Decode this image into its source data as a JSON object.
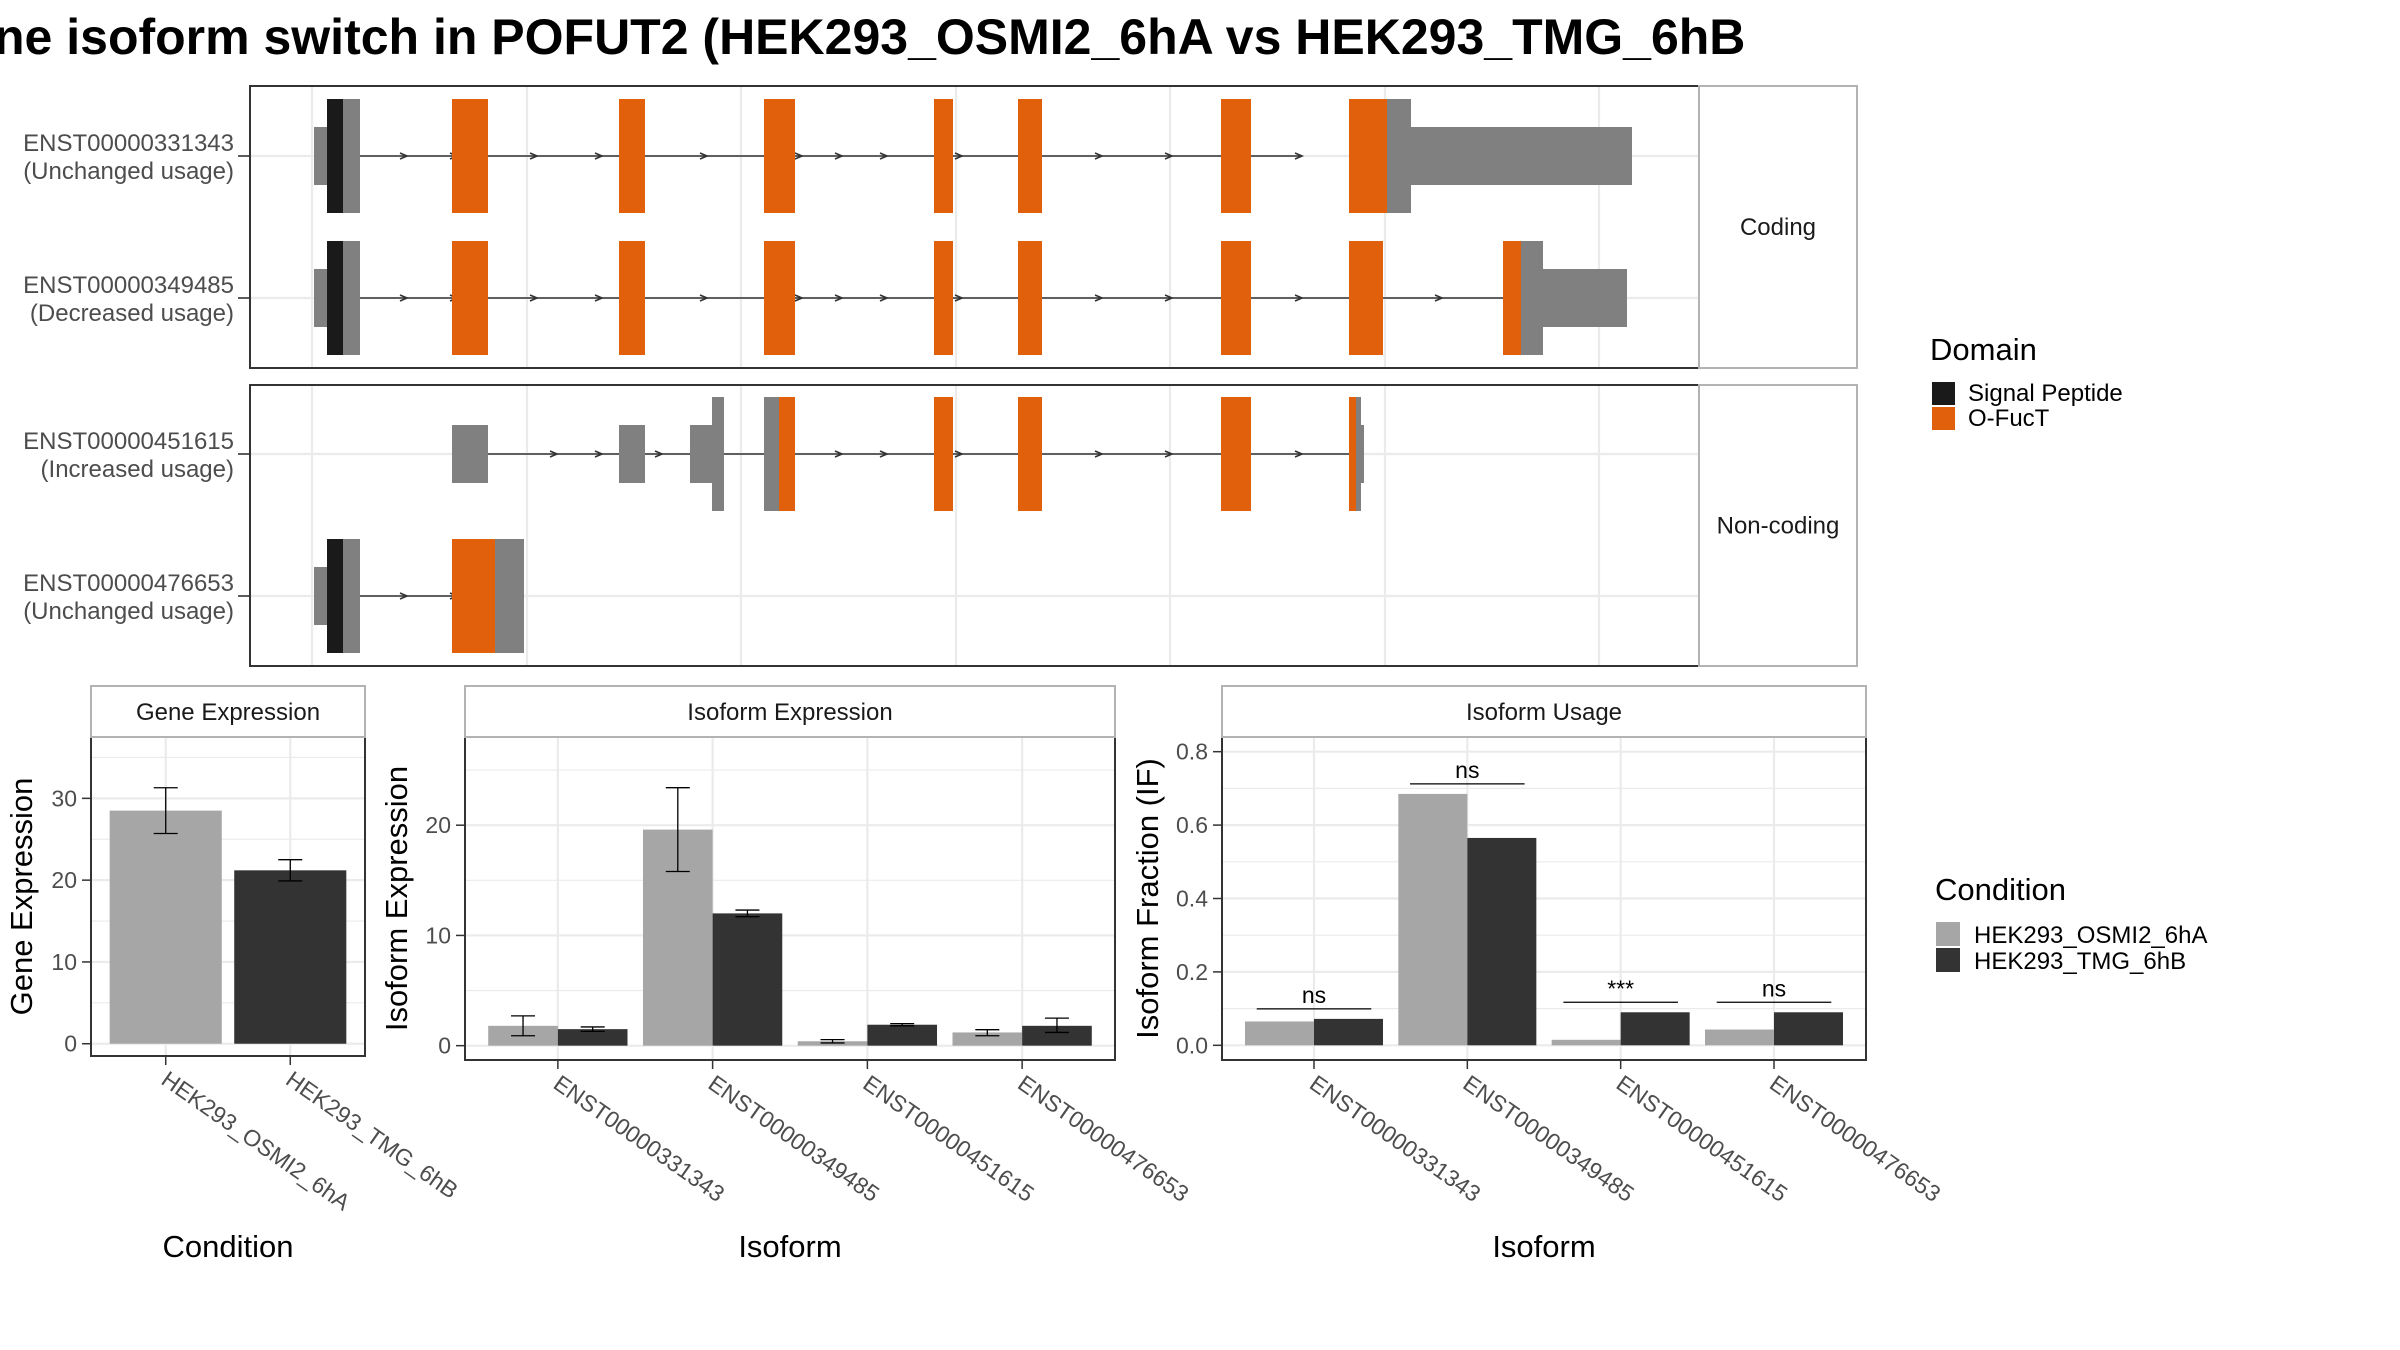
{
  "title": "ne isoform switch in POFUT2 (HEK293_OSMI2_6hA vs HEK293_TMG_6hB",
  "colors": {
    "signal_peptide": "#1a1a1a",
    "o_fuct": "#e0600b",
    "utr": "#808080",
    "cond_a": "#a6a6a6",
    "cond_b": "#333333",
    "panel_border": "#333333",
    "strip_border": "#b3b3b3",
    "grid": "#ebebeb"
  },
  "structure": {
    "groups": [
      {
        "label": "Coding",
        "isoforms": [
          {
            "id": "ENST00000331343",
            "usage": "(Unchanged usage)"
          },
          {
            "id": "ENST00000349485",
            "usage": "(Decreased usage)"
          }
        ]
      },
      {
        "label": "Non-coding",
        "isoforms": [
          {
            "id": "ENST00000451615",
            "usage": "(Increased usage)"
          },
          {
            "id": "ENST00000476653",
            "usage": "(Unchanged usage)"
          }
        ]
      }
    ],
    "legend": {
      "title": "Domain",
      "items": [
        {
          "label": "Signal Peptide",
          "color_key": "signal_peptide"
        },
        {
          "label": "O-FucT",
          "color_key": "o_fuct"
        }
      ]
    }
  },
  "chart_data": [
    {
      "type": "bar",
      "title": "Gene Expression",
      "xlabel": "Condition",
      "ylabel": "Gene Expression",
      "categories": [
        "HEK293_OSMI2_6hA",
        "HEK293_TMG_6hB"
      ],
      "values": [
        28.5,
        21.2
      ],
      "errors": [
        [
          25.7,
          31.3
        ],
        [
          19.9,
          22.5
        ]
      ],
      "ylim": [
        -1.5,
        37.5
      ],
      "yticks": [
        0,
        10,
        20,
        30
      ]
    },
    {
      "type": "bar",
      "title": "Isoform Expression",
      "xlabel": "Isoform",
      "ylabel": "Isoform Expression",
      "categories": [
        "ENST00000331343",
        "ENST00000349485",
        "ENST00000451615",
        "ENST00000476653"
      ],
      "series": [
        {
          "name": "HEK293_OSMI2_6hA",
          "values": [
            1.8,
            19.6,
            0.4,
            1.2
          ],
          "errors": [
            [
              0.9,
              2.7
            ],
            [
              15.8,
              23.4
            ],
            [
              0.25,
              0.55
            ],
            [
              0.9,
              1.45
            ]
          ]
        },
        {
          "name": "HEK293_TMG_6hB",
          "values": [
            1.5,
            12.0,
            1.9,
            1.8
          ],
          "errors": [
            [
              1.3,
              1.7
            ],
            [
              11.7,
              12.3
            ],
            [
              1.8,
              2.0
            ],
            [
              1.2,
              2.5
            ]
          ]
        }
      ],
      "ylim": [
        -1.3,
        28
      ],
      "yticks": [
        0,
        10,
        20
      ]
    },
    {
      "type": "bar",
      "title": "Isoform Usage",
      "xlabel": "Isoform",
      "ylabel": "Isoform Fraction (IF)",
      "categories": [
        "ENST00000331343",
        "ENST00000349485",
        "ENST00000451615",
        "ENST00000476653"
      ],
      "series": [
        {
          "name": "HEK293_OSMI2_6hA",
          "values": [
            0.065,
            0.685,
            0.015,
            0.043
          ]
        },
        {
          "name": "HEK293_TMG_6hB",
          "values": [
            0.072,
            0.565,
            0.09,
            0.09
          ]
        }
      ],
      "significance": [
        "ns",
        "ns",
        "***",
        "ns"
      ],
      "ylim": [
        -0.04,
        0.84
      ],
      "yticks": [
        0.0,
        0.2,
        0.4,
        0.6,
        0.8
      ],
      "ytick_labels": [
        "0.0",
        "0.2",
        "0.4",
        "0.6",
        "0.8"
      ]
    }
  ],
  "condition_legend": {
    "title": "Condition",
    "items": [
      {
        "label": "HEK293_OSMI2_6hA",
        "color_key": "cond_a"
      },
      {
        "label": "HEK293_TMG_6hB",
        "color_key": "cond_b"
      }
    ]
  }
}
